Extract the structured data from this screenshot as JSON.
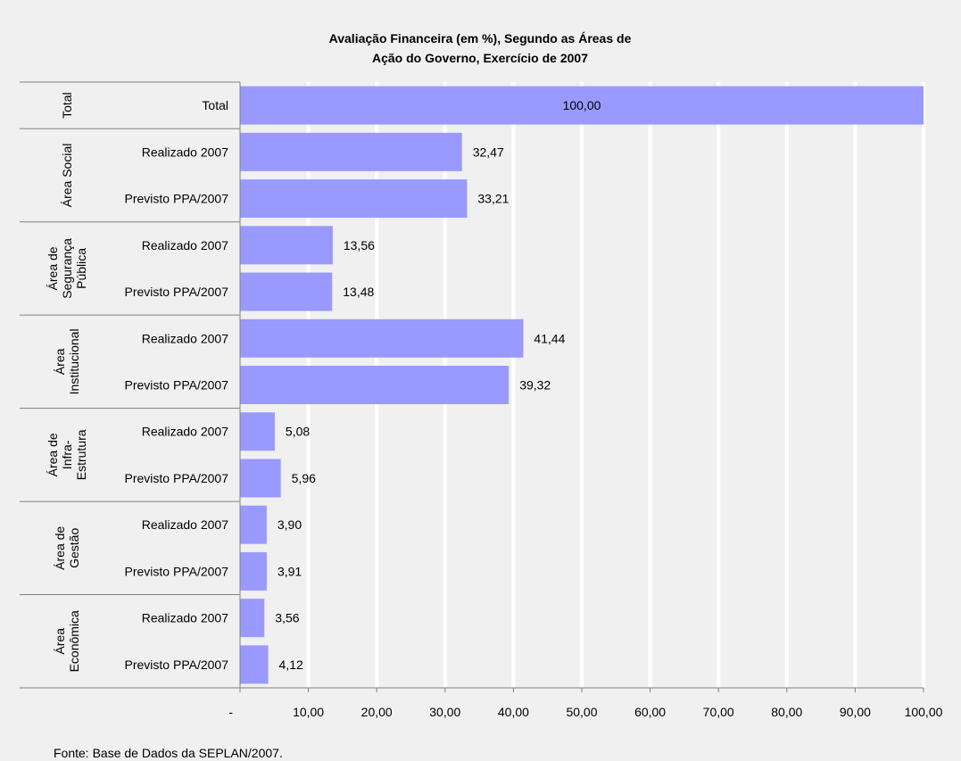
{
  "chart_data": {
    "type": "bar",
    "orientation": "horizontal",
    "title": [
      "Avaliação Financeira (em %), Segundo as Áreas de",
      "Ação do Governo, Exercício de 2007"
    ],
    "groups": [
      {
        "label": [
          "Total"
        ],
        "bars": [
          {
            "category": "Total",
            "value": 100.0,
            "label": "100,00"
          }
        ]
      },
      {
        "label": [
          "Área Social"
        ],
        "bars": [
          {
            "category": "Realizado 2007",
            "value": 32.47,
            "label": "32,47"
          },
          {
            "category": "Previsto PPA/2007",
            "value": 33.21,
            "label": "33,21"
          }
        ]
      },
      {
        "label": [
          "Área de",
          "Segurança",
          "Pública"
        ],
        "bars": [
          {
            "category": "Realizado 2007",
            "value": 13.56,
            "label": "13,56"
          },
          {
            "category": "Previsto PPA/2007",
            "value": 13.48,
            "label": "13,48"
          }
        ]
      },
      {
        "label": [
          "Área",
          "Institucional"
        ],
        "bars": [
          {
            "category": "Realizado 2007",
            "value": 41.44,
            "label": "41,44"
          },
          {
            "category": "Previsto PPA/2007",
            "value": 39.32,
            "label": "39,32"
          }
        ]
      },
      {
        "label": [
          "Área de",
          "Infra-",
          "Estrutura"
        ],
        "bars": [
          {
            "category": "Realizado 2007",
            "value": 5.08,
            "label": "5,08"
          },
          {
            "category": "Previsto PPA/2007",
            "value": 5.96,
            "label": "5,96"
          }
        ]
      },
      {
        "label": [
          "Área de",
          "Gestão"
        ],
        "bars": [
          {
            "category": "Realizado 2007",
            "value": 3.9,
            "label": "3,90"
          },
          {
            "category": "Previsto PPA/2007",
            "value": 3.91,
            "label": "3,91"
          }
        ]
      },
      {
        "label": [
          "Área",
          "Econômica"
        ],
        "bars": [
          {
            "category": "Realizado 2007",
            "value": 3.56,
            "label": "3,56"
          },
          {
            "category": "Previsto PPA/2007",
            "value": 4.12,
            "label": "4,12"
          }
        ]
      }
    ],
    "xlim": [
      0,
      100
    ],
    "xticks": [
      0,
      10,
      20,
      30,
      40,
      50,
      60,
      70,
      80,
      90,
      100
    ],
    "xtick_labels": [
      "-",
      "10,00",
      "20,00",
      "30,00",
      "40,00",
      "50,00",
      "60,00",
      "70,00",
      "80,00",
      "90,00",
      "100,00"
    ],
    "grid": true,
    "bar_color": "#9999ff",
    "grid_color": "#ffffff",
    "background": "#f0f0f0"
  },
  "source_note": "Fonte: Base de Dados da SEPLAN/2007."
}
